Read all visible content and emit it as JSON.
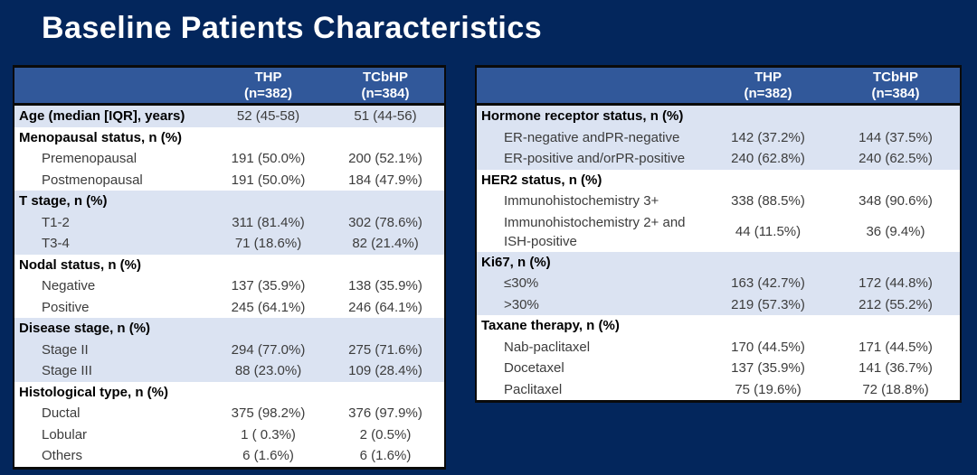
{
  "slide": {
    "title": "Baseline Patients Characteristics"
  },
  "colors": {
    "background": "#03265c",
    "table_header_bg": "#31589a",
    "row_alt": "#dbe3f2",
    "row_white": "#ffffff",
    "border": "#0a0a0a",
    "header_text": "#ffffff",
    "body_text": "#3c3c3c"
  },
  "tables": [
    {
      "name": "baseline-characteristics-left",
      "col_headers": [
        {
          "arm": "THP",
          "n": "(n=382)"
        },
        {
          "arm": "TCbHP",
          "n": "(n=384)"
        }
      ],
      "sections": [
        {
          "shade": "alt",
          "rows": [
            {
              "group": true,
              "label": "Age (median [IQR], years)",
              "thp": "52 (45-58)",
              "tcbhp": "51 (44-56)"
            }
          ]
        },
        {
          "shade": "white",
          "rows": [
            {
              "group": true,
              "label": "Menopausal status, n (%)",
              "thp": "",
              "tcbhp": ""
            },
            {
              "label": "Premenopausal",
              "thp": "191 (50.0%)",
              "tcbhp": "200 (52.1%)"
            },
            {
              "label": "Postmenopausal",
              "thp": "191 (50.0%)",
              "tcbhp": "184 (47.9%)"
            }
          ]
        },
        {
          "shade": "alt",
          "rows": [
            {
              "group": true,
              "label": "T stage, n (%)",
              "thp": "",
              "tcbhp": ""
            },
            {
              "label": "T1-2",
              "thp": "311 (81.4%)",
              "tcbhp": "302 (78.6%)"
            },
            {
              "label": "T3-4",
              "thp": "71 (18.6%)",
              "tcbhp": "82 (21.4%)"
            }
          ]
        },
        {
          "shade": "white",
          "rows": [
            {
              "group": true,
              "label": "Nodal status, n (%)",
              "thp": "",
              "tcbhp": ""
            },
            {
              "label": "Negative",
              "thp": "137 (35.9%)",
              "tcbhp": "138 (35.9%)"
            },
            {
              "label": "Positive",
              "thp": "245 (64.1%)",
              "tcbhp": "246 (64.1%)"
            }
          ]
        },
        {
          "shade": "alt",
          "rows": [
            {
              "group": true,
              "label": "Disease stage, n (%)",
              "thp": "",
              "tcbhp": ""
            },
            {
              "label": "Stage II",
              "thp": "294 (77.0%)",
              "tcbhp": "275 (71.6%)"
            },
            {
              "label": "Stage III",
              "thp": "88 (23.0%)",
              "tcbhp": "109 (28.4%)"
            }
          ]
        },
        {
          "shade": "white",
          "rows": [
            {
              "group": true,
              "label": "Histological type, n (%)",
              "thp": "",
              "tcbhp": ""
            },
            {
              "label": "Ductal",
              "thp": "375 (98.2%)",
              "tcbhp": "376 (97.9%)"
            },
            {
              "label": "Lobular",
              "thp": "1 ( 0.3%)",
              "tcbhp": "2 (0.5%)"
            },
            {
              "label": "Others",
              "thp": "6 (1.6%)",
              "tcbhp": "6 (1.6%)"
            }
          ]
        }
      ]
    },
    {
      "name": "baseline-characteristics-right",
      "col_headers": [
        {
          "arm": "THP",
          "n": "(n=382)"
        },
        {
          "arm": "TCbHP",
          "n": "(n=384)"
        }
      ],
      "sections": [
        {
          "shade": "alt",
          "rows": [
            {
              "group": true,
              "label": "Hormone receptor status, n (%)",
              "thp": "",
              "tcbhp": ""
            },
            {
              "label": "ER-negative andPR-negative",
              "thp": "142 (37.2%)",
              "tcbhp": "144 (37.5%)"
            },
            {
              "label": "ER-positive and/orPR-positive",
              "thp": "240 (62.8%)",
              "tcbhp": "240 (62.5%)"
            }
          ]
        },
        {
          "shade": "white",
          "rows": [
            {
              "group": true,
              "label": "HER2 status, n (%)",
              "thp": "",
              "tcbhp": ""
            },
            {
              "label": "Immunohistochemistry 3+",
              "thp": "338 (88.5%)",
              "tcbhp": "348 (90.6%)"
            },
            {
              "label": "Immunohistochemistry 2+ and ISH-positive",
              "thp": "44 (11.5%)",
              "tcbhp": "36 (9.4%)"
            }
          ]
        },
        {
          "shade": "alt",
          "rows": [
            {
              "group": true,
              "label": "Ki67, n (%)",
              "thp": "",
              "tcbhp": ""
            },
            {
              "label": "≤30%",
              "thp": "163 (42.7%)",
              "tcbhp": "172 (44.8%)"
            },
            {
              "label": ">30%",
              "thp": "219 (57.3%)",
              "tcbhp": "212 (55.2%)"
            }
          ]
        },
        {
          "shade": "white",
          "rows": [
            {
              "group": true,
              "label": "Taxane therapy, n (%)",
              "thp": "",
              "tcbhp": ""
            },
            {
              "label": "Nab-paclitaxel",
              "thp": "170 (44.5%)",
              "tcbhp": "171 (44.5%)"
            },
            {
              "label": "Docetaxel",
              "thp": "137 (35.9%)",
              "tcbhp": "141 (36.7%)"
            },
            {
              "label": "Paclitaxel",
              "thp": "75 (19.6%)",
              "tcbhp": "72 (18.8%)"
            }
          ]
        }
      ]
    }
  ]
}
